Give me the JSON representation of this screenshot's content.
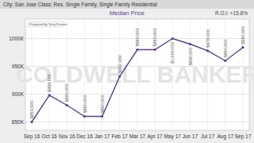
{
  "chart_data": {
    "type": "line",
    "title": "Median Price",
    "subtitle": "City: San Jose   Class: Res. Single Family, Single Family Residential",
    "annotations": [
      "R.O.I: +15.8%",
      "Prepared by Terry Farmer",
      "COLDWELL BANKER"
    ],
    "categories": [
      "Sep 16",
      "Oct 16",
      "Nov 16",
      "Dec 16",
      "Jan 17",
      "Feb 17",
      "Mar 17",
      "Apr 17",
      "May 17",
      "Jun 17",
      "Jul 17",
      "Aug 17",
      "Sep 17"
    ],
    "values": [
      850000,
      898000,
      880000,
      860000,
      860000,
      932000,
      980000,
      980000,
      1000000,
      990000,
      978000,
      960000,
      984000
    ],
    "value_labels": [
      "$850,000",
      "$898,000",
      "$880,000",
      "$860,000",
      "$860,000",
      "$932,000",
      "$980,000",
      "$980,000",
      "$1,000,000",
      "$990,000",
      "$978,000",
      "$960,000",
      "$984,000"
    ],
    "color": "#5b3f8f",
    "marker": "circle",
    "data_labels": true,
    "grid": true,
    "ylim": [
      835000,
      1035000
    ],
    "yticks": [
      {
        "value": 850000,
        "label": "850K"
      },
      {
        "value": 900000,
        "label": "900K"
      },
      {
        "value": 950000,
        "label": "950K"
      },
      {
        "value": 1000000,
        "label": "1000K"
      }
    ]
  }
}
